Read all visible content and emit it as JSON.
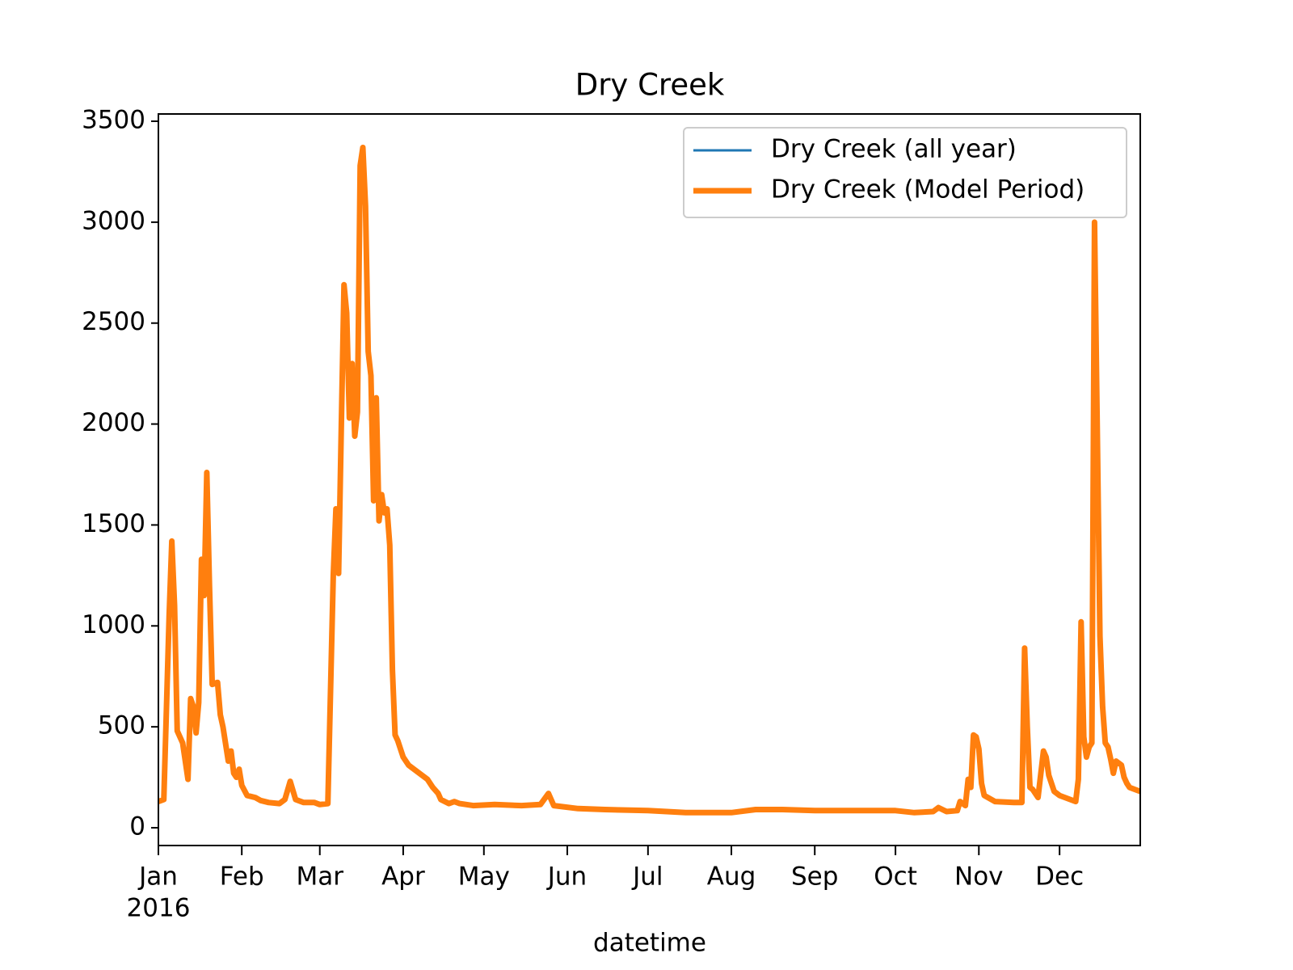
{
  "chart_data": {
    "type": "line",
    "title": "Dry Creek",
    "x_label": "datetime",
    "x_year_label": "2016",
    "legend": "upper right",
    "x": [
      "2016-01-01",
      "2016-01-03",
      "2016-01-05",
      "2016-01-06",
      "2016-01-07",
      "2016-01-08",
      "2016-01-10",
      "2016-01-12",
      "2016-01-13",
      "2016-01-14",
      "2016-01-15",
      "2016-01-16",
      "2016-01-17",
      "2016-01-18",
      "2016-01-19",
      "2016-01-20",
      "2016-01-21",
      "2016-01-23",
      "2016-01-24",
      "2016-01-25",
      "2016-01-27",
      "2016-01-28",
      "2016-01-29",
      "2016-01-30",
      "2016-01-31",
      "2016-02-01",
      "2016-02-03",
      "2016-02-06",
      "2016-02-08",
      "2016-02-11",
      "2016-02-15",
      "2016-02-17",
      "2016-02-19",
      "2016-02-21",
      "2016-02-24",
      "2016-02-28",
      "2016-03-01",
      "2016-03-04",
      "2016-03-06",
      "2016-03-07",
      "2016-03-08",
      "2016-03-09",
      "2016-03-10",
      "2016-03-11",
      "2016-03-12",
      "2016-03-13",
      "2016-03-14",
      "2016-03-15",
      "2016-03-16",
      "2016-03-17",
      "2016-03-18",
      "2016-03-19",
      "2016-03-20",
      "2016-03-21",
      "2016-03-22",
      "2016-03-23",
      "2016-03-24",
      "2016-03-25",
      "2016-03-26",
      "2016-03-27",
      "2016-03-28",
      "2016-03-29",
      "2016-03-30",
      "2016-04-01",
      "2016-04-03",
      "2016-04-05",
      "2016-04-08",
      "2016-04-10",
      "2016-04-12",
      "2016-04-14",
      "2016-04-15",
      "2016-04-18",
      "2016-04-20",
      "2016-04-22",
      "2016-04-27",
      "2016-05-05",
      "2016-05-15",
      "2016-05-22",
      "2016-05-25",
      "2016-05-27",
      "2016-06-05",
      "2016-06-15",
      "2016-07-01",
      "2016-07-15",
      "2016-08-01",
      "2016-08-10",
      "2016-08-20",
      "2016-09-01",
      "2016-09-15",
      "2016-10-01",
      "2016-10-08",
      "2016-10-15",
      "2016-10-17",
      "2016-10-20",
      "2016-10-24",
      "2016-10-25",
      "2016-10-27",
      "2016-10-28",
      "2016-10-29",
      "2016-10-30",
      "2016-10-31",
      "2016-11-01",
      "2016-11-02",
      "2016-11-03",
      "2016-11-07",
      "2016-11-14",
      "2016-11-17",
      "2016-11-18",
      "2016-11-19",
      "2016-11-20",
      "2016-11-21",
      "2016-11-23",
      "2016-11-25",
      "2016-11-26",
      "2016-11-27",
      "2016-11-29",
      "2016-12-01",
      "2016-12-07",
      "2016-12-08",
      "2016-12-09",
      "2016-12-10",
      "2016-12-11",
      "2016-12-12",
      "2016-12-13",
      "2016-12-14",
      "2016-12-15",
      "2016-12-16",
      "2016-12-17",
      "2016-12-18",
      "2016-12-19",
      "2016-12-20",
      "2016-12-21",
      "2016-12-22",
      "2016-12-23",
      "2016-12-24",
      "2016-12-25",
      "2016-12-26",
      "2016-12-27",
      "2016-12-29",
      "2016-12-31"
    ],
    "series": [
      {
        "name": "Dry Creek (all year)",
        "color": "#1f77b4",
        "width": 3,
        "values": [
          130,
          140,
          1050,
          1420,
          1100,
          480,
          420,
          240,
          640,
          600,
          470,
          620,
          1330,
          1150,
          1760,
          1200,
          710,
          720,
          560,
          500,
          330,
          380,
          270,
          250,
          290,
          210,
          160,
          150,
          135,
          125,
          120,
          140,
          230,
          140,
          125,
          125,
          115,
          120,
          1250,
          1580,
          1260,
          2000,
          2690,
          2550,
          2030,
          2300,
          1940,
          2060,
          3280,
          3370,
          3080,
          2360,
          2240,
          1620,
          2130,
          1520,
          1650,
          1560,
          1580,
          1400,
          780,
          460,
          430,
          350,
          310,
          290,
          260,
          240,
          200,
          170,
          140,
          120,
          130,
          120,
          110,
          115,
          110,
          115,
          170,
          110,
          95,
          90,
          85,
          75,
          75,
          90,
          90,
          85,
          85,
          85,
          75,
          80,
          100,
          80,
          85,
          130,
          110,
          240,
          200,
          460,
          450,
          390,
          220,
          160,
          130,
          125,
          125,
          890,
          500,
          200,
          190,
          150,
          380,
          350,
          260,
          180,
          160,
          130,
          240,
          1020,
          450,
          350,
          400,
          420,
          3000,
          2000,
          950,
          600,
          420,
          400,
          340,
          270,
          330,
          320,
          310,
          250,
          220,
          200,
          190,
          180
        ]
      },
      {
        "name": "Dry Creek (Model Period)",
        "color": "#ff7f0e",
        "width": 7,
        "values": [
          130,
          140,
          1050,
          1420,
          1100,
          480,
          420,
          240,
          640,
          600,
          470,
          620,
          1330,
          1150,
          1760,
          1200,
          710,
          720,
          560,
          500,
          330,
          380,
          270,
          250,
          290,
          210,
          160,
          150,
          135,
          125,
          120,
          140,
          230,
          140,
          125,
          125,
          115,
          120,
          1250,
          1580,
          1260,
          2000,
          2690,
          2550,
          2030,
          2300,
          1940,
          2060,
          3280,
          3370,
          3080,
          2360,
          2240,
          1620,
          2130,
          1520,
          1650,
          1560,
          1580,
          1400,
          780,
          460,
          430,
          350,
          310,
          290,
          260,
          240,
          200,
          170,
          140,
          120,
          130,
          120,
          110,
          115,
          110,
          115,
          170,
          110,
          95,
          90,
          85,
          75,
          75,
          90,
          90,
          85,
          85,
          85,
          75,
          80,
          100,
          80,
          85,
          130,
          110,
          240,
          200,
          460,
          450,
          390,
          220,
          160,
          130,
          125,
          125,
          890,
          500,
          200,
          190,
          150,
          380,
          350,
          260,
          180,
          160,
          130,
          240,
          1020,
          450,
          350,
          400,
          420,
          3000,
          2000,
          950,
          600,
          420,
          400,
          340,
          270,
          330,
          320,
          310,
          250,
          220,
          200,
          190,
          180
        ]
      }
    ],
    "xlim": [
      "2016-01-01",
      "2016-12-31"
    ],
    "xticks": [
      {
        "value": "2016-01-01",
        "label": "Jan"
      },
      {
        "value": "2016-02-01",
        "label": "Feb"
      },
      {
        "value": "2016-03-01",
        "label": "Mar"
      },
      {
        "value": "2016-04-01",
        "label": "Apr"
      },
      {
        "value": "2016-05-01",
        "label": "May"
      },
      {
        "value": "2016-06-01",
        "label": "Jun"
      },
      {
        "value": "2016-07-01",
        "label": "Jul"
      },
      {
        "value": "2016-08-01",
        "label": "Aug"
      },
      {
        "value": "2016-09-01",
        "label": "Sep"
      },
      {
        "value": "2016-10-01",
        "label": "Oct"
      },
      {
        "value": "2016-11-01",
        "label": "Nov"
      },
      {
        "value": "2016-12-01",
        "label": "Dec"
      }
    ],
    "ylim": [
      -88,
      3536
    ],
    "yticks": [
      0,
      500,
      1000,
      1500,
      2000,
      2500,
      3000,
      3500
    ]
  }
}
